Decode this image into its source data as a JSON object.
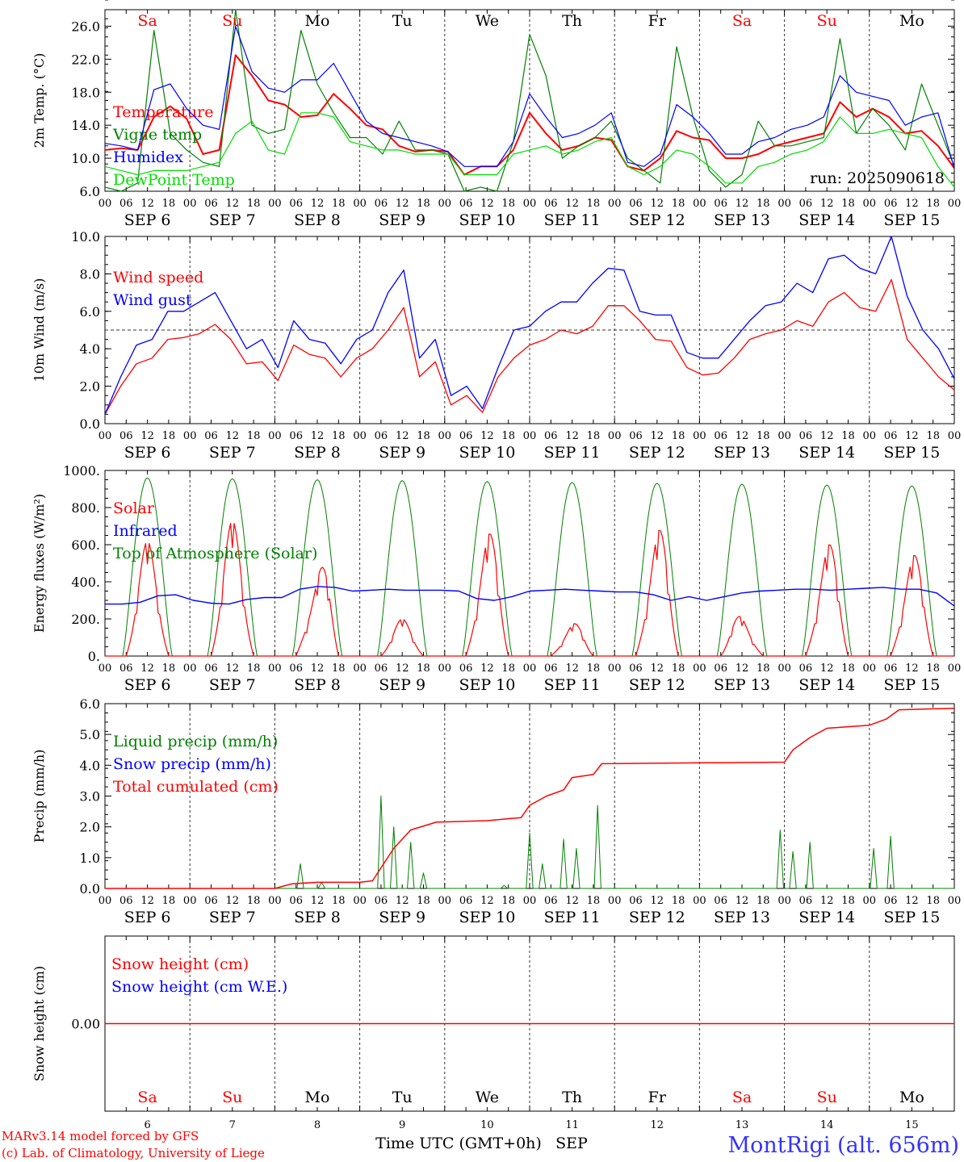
{
  "chart_data": [
    {
      "type": "line",
      "ylabel": "2m Temp. (°C)",
      "ylim": [
        6.0,
        28.0
      ],
      "yticks": [
        "6.0",
        "10.0",
        "14.0",
        "18.0",
        "22.0",
        "26.0"
      ],
      "yticks_values": [
        6,
        10,
        14,
        18,
        22,
        26
      ],
      "day_labels": [
        "Sa",
        "Su",
        "Mo",
        "Tu",
        "We",
        "Th",
        "Fr",
        "Sa",
        "Su",
        "Mo"
      ],
      "run_label": "run: 2025090618",
      "series": [
        {
          "name": "Temperature",
          "color": "#ff0000",
          "values": [
            11,
            11.2,
            11,
            15,
            16.3,
            14.8,
            10.5,
            11,
            22.5,
            20,
            17,
            16.5,
            15,
            15.2,
            17.8,
            16,
            14,
            13.5,
            11.5,
            10.8,
            11,
            10.8,
            8,
            9,
            9,
            11,
            15.5,
            13,
            11,
            11.5,
            12.5,
            12.2,
            9,
            8.5,
            10,
            13.3,
            12.5,
            12.2,
            10,
            10,
            10.5,
            11.5,
            12,
            12.5,
            13,
            16.8,
            15,
            16,
            15,
            13,
            13.3,
            11.5,
            8.8
          ]
        },
        {
          "name": "Vigne temp",
          "color": "#008000",
          "values": [
            6.5,
            6,
            7,
            25.5,
            13,
            11,
            9.5,
            9,
            28,
            14,
            13,
            13.5,
            25.5,
            19,
            15.5,
            12.5,
            12.5,
            10.5,
            14.5,
            11,
            11,
            10.5,
            6,
            6.5,
            6,
            12,
            25,
            20,
            10,
            11.5,
            12.5,
            14.5,
            10,
            8.5,
            7,
            23.5,
            15,
            8.5,
            6.5,
            8,
            14.5,
            11.5,
            11.5,
            12,
            12.5,
            24.5,
            13,
            16,
            14,
            11,
            19,
            14,
            9
          ]
        },
        {
          "name": "Humidex",
          "color": "#0000ff",
          "values": [
            11.8,
            11.5,
            11,
            18.3,
            19,
            16,
            14,
            13.5,
            26,
            20.5,
            18.5,
            18,
            19.5,
            19.5,
            21.5,
            18,
            14.5,
            13,
            12.5,
            12,
            11.5,
            10.8,
            9,
            9,
            9,
            12,
            17.8,
            15,
            12.5,
            13,
            14,
            15.5,
            9.5,
            9,
            10.5,
            16.5,
            15,
            13,
            10.5,
            10.5,
            12,
            12.5,
            13.5,
            14,
            15,
            20,
            18,
            17.5,
            17,
            14,
            15,
            15.5,
            8.8
          ]
        },
        {
          "name": "DewPoint Temp",
          "color": "#00dd00",
          "values": [
            9,
            8.5,
            8,
            8.5,
            8.5,
            8.5,
            9,
            9.5,
            13,
            14.5,
            11,
            10.5,
            15.5,
            15.5,
            15,
            12,
            11.5,
            11,
            11,
            10.5,
            10.5,
            10.5,
            8,
            8,
            8,
            10.5,
            11,
            11.5,
            10.5,
            11,
            12,
            12.5,
            9,
            8,
            9,
            11,
            10.5,
            9,
            7,
            7,
            9,
            9.5,
            10.5,
            11,
            12,
            15,
            13,
            13,
            13.5,
            13,
            12.5,
            9,
            6.5
          ]
        }
      ]
    },
    {
      "type": "line",
      "ylabel": "10m Wind (m/s)",
      "ylim": [
        0.0,
        10.0
      ],
      "yticks": [
        "0.0",
        "2.0",
        "4.0",
        "6.0",
        "8.0",
        "10.0"
      ],
      "yticks_values": [
        0,
        2,
        4,
        6,
        8,
        10
      ],
      "reference_line": 5.0,
      "series": [
        {
          "name": "Wind speed",
          "color": "#ff0000",
          "values": [
            0.5,
            2,
            3.2,
            3.5,
            4.5,
            4.6,
            4.8,
            5.3,
            4.5,
            3.2,
            3.3,
            2.3,
            4.2,
            3.7,
            3.5,
            2.5,
            3.5,
            4,
            5,
            6.2,
            2.5,
            3.3,
            1,
            1.5,
            0.6,
            2.5,
            3.5,
            4.2,
            4.5,
            5,
            4.8,
            5.2,
            6.3,
            6.3,
            5.5,
            4.5,
            4.4,
            3,
            2.6,
            2.7,
            3.5,
            4.5,
            4.8,
            5,
            5.5,
            5.2,
            6.5,
            7,
            6.2,
            6,
            7.7,
            4.5,
            3.5,
            2.5,
            1.8
          ]
        },
        {
          "name": "Wind gust",
          "color": "#0000ff",
          "values": [
            0.5,
            2.5,
            4.2,
            4.5,
            6,
            6,
            6.5,
            7,
            5.5,
            4,
            4.5,
            3,
            5.5,
            4.5,
            4.3,
            3.2,
            4.5,
            5,
            7,
            8.2,
            3.5,
            4.5,
            1.5,
            2,
            0.8,
            3,
            5,
            5.2,
            6,
            6.5,
            6.5,
            7.5,
            8.3,
            8.2,
            6,
            5.8,
            5.8,
            3.8,
            3.5,
            3.5,
            4.5,
            5.5,
            6.3,
            6.5,
            7.5,
            7,
            8.8,
            9,
            8.3,
            8,
            10,
            6.8,
            5,
            4,
            2.4
          ]
        }
      ]
    },
    {
      "type": "line",
      "ylabel": "Energy fluxes (W/m²)",
      "ylim": [
        0,
        1000
      ],
      "yticks": [
        "0.",
        "200.",
        "400.",
        "600.",
        "800.",
        "1000."
      ],
      "yticks_values": [
        0,
        200,
        400,
        600,
        800,
        1000
      ],
      "series": [
        {
          "name": "Solar",
          "color": "#ff0000",
          "peaks": [
            [
              0.5,
              620
            ],
            [
              1.5,
              730
            ],
            [
              2.6,
              540
            ],
            [
              3.5,
              200
            ],
            [
              4.55,
              680
            ],
            [
              5.55,
              180
            ],
            [
              6.55,
              700
            ],
            [
              7.45,
              220
            ],
            [
              8.55,
              620
            ],
            [
              9.55,
              560
            ]
          ]
        },
        {
          "name": "Infrared",
          "color": "#0000ff",
          "values": [
            280,
            280,
            290,
            325,
            330,
            300,
            285,
            280,
            305,
            315,
            315,
            360,
            375,
            370,
            350,
            355,
            360,
            355,
            355,
            355,
            350,
            310,
            300,
            320,
            350,
            355,
            360,
            355,
            350,
            345,
            345,
            330,
            300,
            320,
            300,
            320,
            340,
            350,
            355,
            360,
            360,
            355,
            360,
            365,
            370,
            360,
            360,
            340,
            270
          ]
        },
        {
          "name": "Top of Atmosphere (Solar)",
          "color": "#008000",
          "peak": 960,
          "daylight_hours": [
            5,
            19
          ]
        }
      ]
    },
    {
      "type": "line",
      "ylabel": "Precip (mm/h)",
      "ylim": [
        0.0,
        6.0
      ],
      "yticks": [
        "0.0",
        "1.0",
        "2.0",
        "3.0",
        "4.0",
        "5.0",
        "6.0"
      ],
      "yticks_values": [
        0,
        1,
        2,
        3,
        4,
        5,
        6
      ],
      "series": [
        {
          "name": "Liquid precip (mm/h)",
          "color": "#008000",
          "events": [
            [
              2.3,
              0.8
            ],
            [
              2.55,
              0.2
            ],
            [
              3.25,
              3.0
            ],
            [
              3.4,
              2.0
            ],
            [
              3.6,
              1.5
            ],
            [
              3.75,
              0.5
            ],
            [
              4.7,
              0.1
            ],
            [
              5.0,
              1.8
            ],
            [
              5.15,
              0.8
            ],
            [
              5.4,
              1.6
            ],
            [
              5.55,
              1.3
            ],
            [
              5.8,
              2.7
            ],
            [
              7.95,
              1.9
            ],
            [
              8.1,
              1.2
            ],
            [
              8.3,
              1.5
            ],
            [
              9.05,
              1.3
            ],
            [
              9.25,
              1.7
            ]
          ]
        },
        {
          "name": "Snow precip (mm/h)",
          "color": "#0000ff",
          "values": []
        },
        {
          "name": "Total cumulated (cm)",
          "color": "#ff0000",
          "values": [
            [
              2.0,
              0
            ],
            [
              2.2,
              0.15
            ],
            [
              2.5,
              0.2
            ],
            [
              3.0,
              0.2
            ],
            [
              3.15,
              0.25
            ],
            [
              3.4,
              1.3
            ],
            [
              3.6,
              1.9
            ],
            [
              3.9,
              2.15
            ],
            [
              4.5,
              2.2
            ],
            [
              4.9,
              2.3
            ],
            [
              5.0,
              2.7
            ],
            [
              5.2,
              3.0
            ],
            [
              5.4,
              3.2
            ],
            [
              5.5,
              3.6
            ],
            [
              5.75,
              3.7
            ],
            [
              5.85,
              4.05
            ],
            [
              8.0,
              4.1
            ],
            [
              8.1,
              4.5
            ],
            [
              8.3,
              4.9
            ],
            [
              8.5,
              5.2
            ],
            [
              9.0,
              5.3
            ],
            [
              9.2,
              5.5
            ],
            [
              9.35,
              5.8
            ],
            [
              10.0,
              5.85
            ]
          ]
        }
      ]
    },
    {
      "type": "line",
      "ylabel": "Snow height (cm)",
      "yticks": [
        "0.00"
      ],
      "yticks_values": [
        0
      ],
      "day_labels": [
        "Sa",
        "Su",
        "Mo",
        "Tu",
        "We",
        "Th",
        "Fr",
        "Sa",
        "Su",
        "Mo"
      ],
      "day_numbers": [
        "6",
        "7",
        "8",
        "9",
        "10",
        "11",
        "12",
        "13",
        "14",
        "15"
      ],
      "xlabel": "Time UTC (GMT+0h)",
      "xlabel_month": "SEP",
      "series": [
        {
          "name": "Snow height (cm)",
          "color": "#ff0000",
          "values": [
            0,
            0
          ]
        },
        {
          "name": "Snow height (cm W.E.)",
          "color": "#0000ff",
          "values": []
        }
      ]
    }
  ],
  "x_axis": {
    "hour_labels": [
      "00",
      "06",
      "12",
      "18"
    ],
    "final_label": "00",
    "date_labels": [
      "SEP  6",
      "SEP  7",
      "SEP  8",
      "SEP  9",
      "SEP 10",
      "SEP 11",
      "SEP 12",
      "SEP 13",
      "SEP 14",
      "SEP 15"
    ],
    "days": 10
  },
  "footer": {
    "model_line": "MARv3.14 model forced by GFS",
    "credit_line": "(c) Lab. of Climatology, University of Liege",
    "station": "MontRigi (alt. 656m)"
  }
}
